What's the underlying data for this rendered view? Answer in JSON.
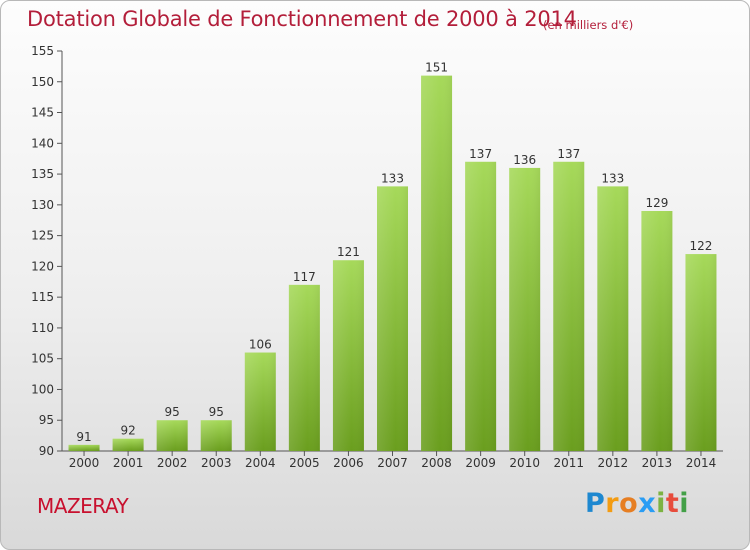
{
  "header": {
    "title": "Dotation Globale de Fonctionnement de 2000 à 2014",
    "unit": "(en milliers d'€)"
  },
  "footer": {
    "commune": "MAZERAY",
    "logo_text": "Proxiti"
  },
  "colors": {
    "title": "#b31e3a",
    "bar_light": "#a6d95a",
    "bar_dark": "#6a9e1e",
    "commune": "#c8102e"
  },
  "chart_data": {
    "type": "bar",
    "title": "Dotation Globale de Fonctionnement de 2000 à 2014",
    "unit": "(en milliers d'€)",
    "categories": [
      "2000",
      "2001",
      "2002",
      "2003",
      "2004",
      "2005",
      "2006",
      "2007",
      "2008",
      "2009",
      "2010",
      "2011",
      "2012",
      "2013",
      "2014"
    ],
    "values": [
      91,
      92,
      95,
      95,
      106,
      117,
      121,
      133,
      151,
      137,
      136,
      137,
      133,
      129,
      122
    ],
    "ylim": [
      90,
      155
    ],
    "yticks": [
      90,
      95,
      100,
      105,
      110,
      115,
      120,
      125,
      130,
      135,
      140,
      145,
      150,
      155
    ],
    "grid": false,
    "data_labels": true
  }
}
